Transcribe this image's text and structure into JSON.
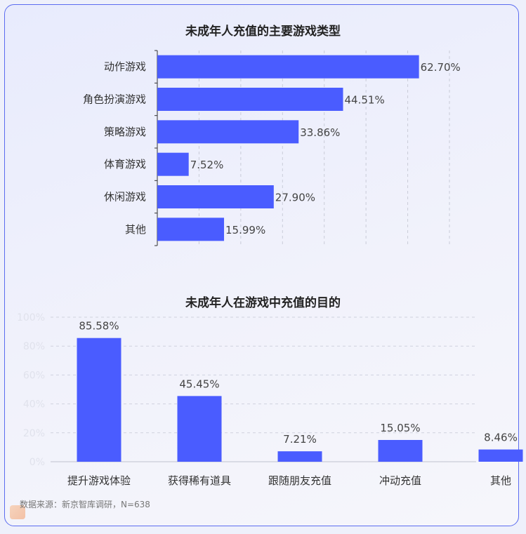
{
  "chart_data": [
    {
      "type": "bar",
      "orientation": "horizontal",
      "title": "未成年人充值的主要游戏类型",
      "categories": [
        "动作游戏",
        "角色扮演游戏",
        "策略游戏",
        "体育游戏",
        "休闲游戏",
        "其他"
      ],
      "values": [
        62.7,
        44.51,
        33.86,
        7.52,
        27.9,
        15.99
      ],
      "value_labels": [
        "62.70%",
        "44.51%",
        "33.86%",
        "7.52%",
        "27.90%",
        "15.99%"
      ],
      "xlim": [
        0,
        70
      ],
      "grid": "vertical dashed",
      "color": "#4a5cff"
    },
    {
      "type": "bar",
      "orientation": "vertical",
      "title": "未成年人在游戏中充值的目的",
      "categories": [
        "提升游戏体验",
        "获得稀有道具",
        "跟随朋友充值",
        "冲动充值",
        "其他"
      ],
      "values": [
        85.58,
        45.45,
        7.21,
        15.05,
        8.46
      ],
      "value_labels": [
        "85.58%",
        "45.45%",
        "7.21%",
        "15.05%",
        "8.46%"
      ],
      "ylim": [
        0,
        100
      ],
      "yticks": [
        "0%",
        "20%",
        "40%",
        "60%",
        "80%",
        "100%"
      ],
      "grid": "horizontal dashed",
      "color": "#4a5cff"
    }
  ],
  "source_note": "数据来源：新京智库调研，N=638"
}
